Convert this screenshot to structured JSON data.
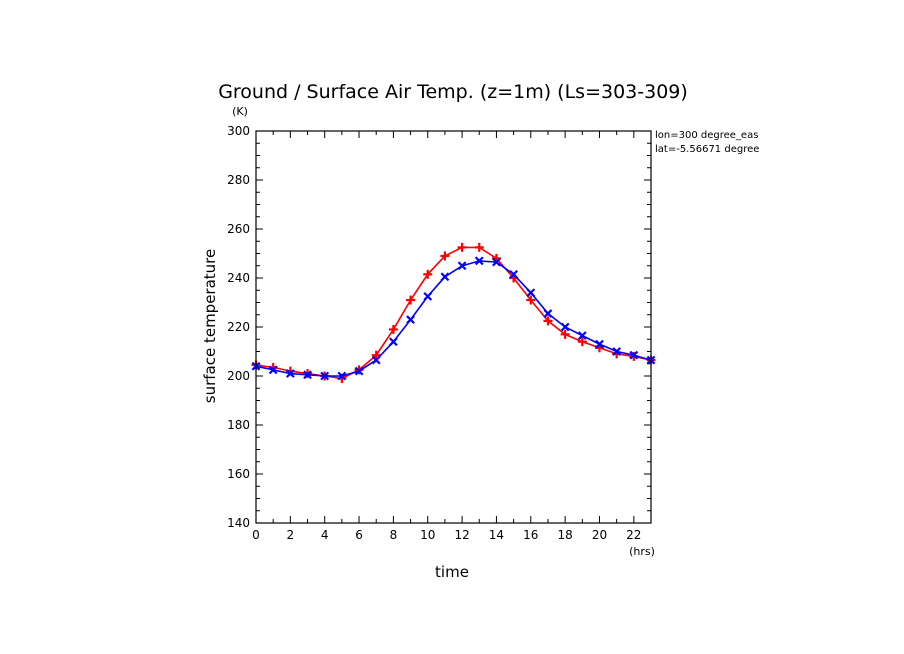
{
  "chart_data": {
    "type": "line",
    "title": "Ground / Surface Air Temp. (z=1m) (Ls=303-309)",
    "xlabel": "time",
    "ylabel": "surface temperature",
    "x_unit": "(hrs)",
    "y_unit": "(K)",
    "xlim": [
      0,
      23
    ],
    "ylim": [
      140,
      300
    ],
    "x_ticks": [
      0,
      2,
      4,
      6,
      8,
      10,
      12,
      14,
      16,
      18,
      20,
      22
    ],
    "y_ticks": [
      140,
      160,
      180,
      200,
      220,
      240,
      260,
      280,
      300
    ],
    "grid": false,
    "annotations": [
      "lon=300 degree_eas",
      "lat=-5.56671 degree"
    ],
    "x": [
      0,
      1,
      2,
      3,
      4,
      5,
      6,
      7,
      8,
      9,
      10,
      11,
      12,
      13,
      14,
      15,
      16,
      17,
      18,
      19,
      20,
      21,
      22,
      23
    ],
    "series": [
      {
        "color": "#ff0000",
        "marker": "plus",
        "values": [
          204.5,
          203.5,
          202,
          201,
          200,
          199,
          202.5,
          208.5,
          219,
          231,
          241.5,
          249,
          252.5,
          252.5,
          248,
          240,
          231,
          222.5,
          217,
          214,
          211.5,
          209,
          208,
          206.5
        ]
      },
      {
        "color": "#0000ff",
        "marker": "cross",
        "values": [
          204,
          202.5,
          201,
          200.5,
          200,
          200,
          202,
          206.5,
          214,
          223,
          232.5,
          240.5,
          245,
          247,
          246.5,
          241.5,
          234,
          225.5,
          220,
          216.5,
          213,
          210,
          208.5,
          206.5
        ]
      }
    ]
  }
}
